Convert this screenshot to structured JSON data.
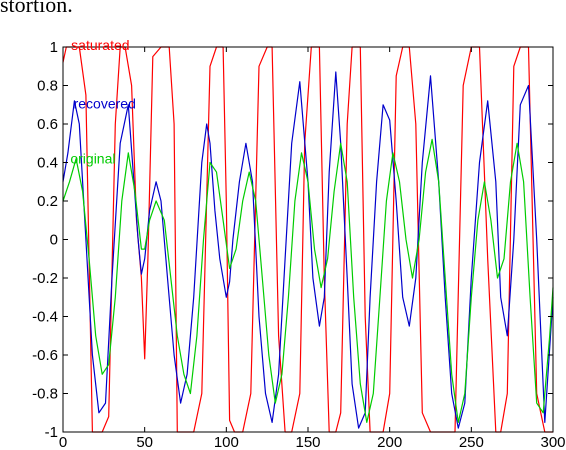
{
  "caption_fragment": "stortion.",
  "chart_data": {
    "type": "line",
    "title": "",
    "xlabel": "",
    "ylabel": "",
    "xlim": [
      0,
      300
    ],
    "ylim": [
      -1,
      1
    ],
    "xticks": [
      0,
      50,
      100,
      150,
      200,
      250,
      300
    ],
    "yticks": [
      -1,
      -0.8,
      -0.6,
      -0.4,
      -0.2,
      0,
      0.2,
      0.4,
      0.6,
      0.8,
      1
    ],
    "ytick_labels": [
      "-1",
      "-0.8",
      "-0.6",
      "-0.4",
      "-0.2",
      "0",
      "0.2",
      "0.4",
      "0.6",
      "0.8",
      "1"
    ],
    "grid": false,
    "series": [
      {
        "name": "saturated",
        "color": "#ff0000",
        "x": [
          0,
          2,
          5,
          10,
          14,
          18,
          24,
          28,
          32,
          35,
          38,
          42,
          45,
          48,
          50,
          52,
          55,
          60,
          65,
          68,
          70,
          72,
          76,
          80,
          85,
          90,
          94,
          98,
          100,
          102,
          105,
          110,
          115,
          120,
          125,
          128,
          132,
          136,
          140,
          145,
          148,
          152,
          157,
          160,
          163,
          167,
          170,
          174,
          177,
          182,
          185,
          188,
          192,
          196,
          200,
          204,
          208,
          212,
          216,
          220,
          225,
          230,
          235,
          240,
          245,
          250,
          255,
          260,
          265,
          268,
          272,
          276,
          280,
          285,
          290,
          295,
          300
        ],
        "y": [
          0.92,
          1,
          1,
          1,
          0.75,
          -1,
          -1,
          -0.92,
          0.6,
          1,
          1,
          0.8,
          0.1,
          -0.2,
          -0.62,
          -0.1,
          0.95,
          1,
          1,
          0.6,
          -1,
          -1,
          -1,
          -1,
          -0.8,
          0.9,
          1,
          1,
          0.2,
          -0.94,
          -1,
          -1,
          -0.8,
          0.9,
          1,
          1,
          -0.5,
          -1,
          -1,
          -0.8,
          0.5,
          1,
          1,
          -0.2,
          -1,
          -1,
          -0.9,
          0.6,
          1,
          1,
          -0.4,
          -1,
          -1,
          -1,
          -0.8,
          0.85,
          1,
          1,
          0.6,
          -0.9,
          -1,
          -1,
          -1,
          -1,
          0.8,
          1,
          1,
          -0.1,
          -1,
          -1,
          -0.8,
          0.9,
          1,
          1,
          -0.8,
          -1,
          -1
        ]
      },
      {
        "name": "recovered",
        "color": "#0000cc",
        "x": [
          0,
          3,
          7,
          10,
          14,
          18,
          22,
          26,
          30,
          35,
          40,
          43,
          46,
          48,
          50,
          53,
          57,
          60,
          64,
          68,
          72,
          76,
          80,
          85,
          88,
          90,
          93,
          96,
          100,
          102,
          104,
          108,
          112,
          116,
          120,
          124,
          128,
          132,
          136,
          140,
          145,
          150,
          153,
          157,
          160,
          163,
          167,
          170,
          174,
          177,
          181,
          185,
          188,
          192,
          196,
          200,
          204,
          208,
          212,
          216,
          220,
          225,
          230,
          234,
          238,
          242,
          246,
          250,
          255,
          260,
          265,
          268,
          272,
          276,
          280,
          285,
          290,
          295,
          300
        ],
        "y": [
          0.3,
          0.45,
          0.72,
          0.6,
          0.0,
          -0.6,
          -0.9,
          -0.85,
          -0.2,
          0.5,
          0.7,
          0.35,
          0.0,
          -0.18,
          -0.1,
          0.15,
          0.3,
          0.2,
          -0.2,
          -0.6,
          -0.85,
          -0.7,
          -0.3,
          0.4,
          0.6,
          0.5,
          0.15,
          -0.1,
          -0.3,
          -0.22,
          0.0,
          0.3,
          0.5,
          0.3,
          -0.4,
          -0.8,
          -0.95,
          -0.7,
          -0.1,
          0.5,
          0.82,
          0.3,
          -0.2,
          -0.45,
          -0.3,
          0.35,
          0.87,
          0.5,
          -0.2,
          -0.75,
          -0.98,
          -0.9,
          -0.3,
          0.3,
          0.7,
          0.62,
          0.2,
          -0.3,
          -0.45,
          -0.2,
          0.4,
          0.85,
          0.3,
          -0.3,
          -0.8,
          -0.98,
          -0.85,
          -0.2,
          0.4,
          0.72,
          0.3,
          -0.3,
          -0.5,
          0.0,
          0.7,
          0.8,
          0.0,
          -0.95,
          -0.3
        ]
      },
      {
        "name": "original",
        "color": "#00cc00",
        "x": [
          0,
          4,
          8,
          12,
          16,
          20,
          24,
          28,
          32,
          36,
          40,
          44,
          48,
          50,
          53,
          57,
          62,
          66,
          70,
          74,
          78,
          82,
          86,
          90,
          94,
          98,
          102,
          106,
          110,
          114,
          118,
          122,
          126,
          130,
          134,
          138,
          142,
          146,
          150,
          154,
          158,
          162,
          166,
          170,
          174,
          178,
          182,
          186,
          190,
          194,
          198,
          202,
          206,
          210,
          214,
          218,
          222,
          226,
          230,
          234,
          238,
          242,
          246,
          250,
          254,
          258,
          262,
          266,
          270,
          274,
          278,
          282,
          286,
          290,
          294,
          298,
          300
        ],
        "y": [
          0.2,
          0.3,
          0.42,
          0.25,
          -0.1,
          -0.5,
          -0.7,
          -0.65,
          -0.3,
          0.2,
          0.45,
          0.25,
          -0.05,
          -0.05,
          0.1,
          0.2,
          0.1,
          -0.2,
          -0.5,
          -0.7,
          -0.8,
          -0.5,
          0.0,
          0.4,
          0.35,
          0.1,
          -0.15,
          -0.05,
          0.2,
          0.35,
          0.2,
          -0.2,
          -0.6,
          -0.85,
          -0.7,
          -0.3,
          0.2,
          0.45,
          0.3,
          -0.05,
          -0.25,
          -0.1,
          0.25,
          0.5,
          0.3,
          -0.3,
          -0.75,
          -0.95,
          -0.8,
          -0.3,
          0.2,
          0.45,
          0.3,
          0.0,
          -0.2,
          0.0,
          0.35,
          0.52,
          0.3,
          -0.2,
          -0.7,
          -0.95,
          -0.8,
          -0.3,
          0.1,
          0.3,
          0.1,
          -0.2,
          -0.1,
          0.3,
          0.5,
          0.3,
          -0.3,
          -0.85,
          -0.9,
          -0.5,
          -0.25
        ]
      }
    ]
  }
}
